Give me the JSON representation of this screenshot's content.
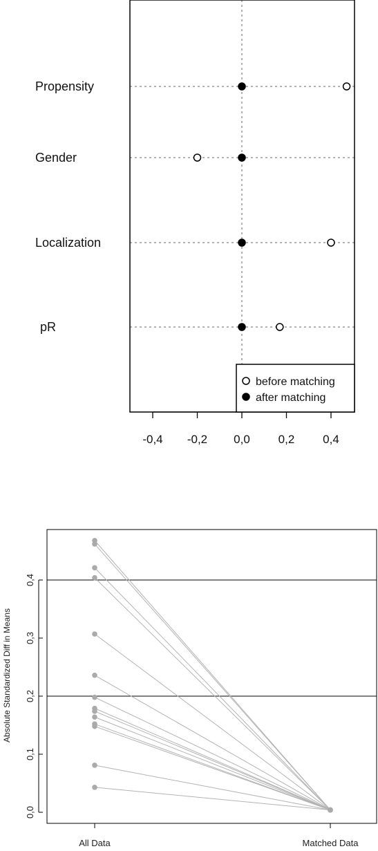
{
  "chart_data": [
    {
      "type": "scatter",
      "xlim": [
        -0.5,
        0.5
      ],
      "x_ticks": [
        -0.4,
        -0.2,
        0.0,
        0.2,
        0.4
      ],
      "x_tick_labels": [
        "-0,4",
        "-0,2",
        "0,0",
        "0,2",
        "0,4"
      ],
      "grid": "dotted lines at x=0 and at each variable",
      "categories": [
        "Propensity",
        "Gender",
        "Localization",
        "pR"
      ],
      "series": [
        {
          "name": "before matching",
          "marker": "open-circle",
          "values": [
            0.47,
            -0.2,
            0.4,
            0.17
          ]
        },
        {
          "name": "after matching",
          "marker": "filled-circle",
          "values": [
            0.0,
            0.0,
            0.0,
            0.0
          ]
        }
      ],
      "legend": {
        "placement": "bottom-right",
        "entries": [
          "before matching",
          "after matching"
        ]
      }
    },
    {
      "type": "line",
      "ylabel": "Absolute Standardized Diff in Means",
      "categories": [
        "All Data",
        "Matched Data"
      ],
      "ylim": [
        -0.01,
        0.49
      ],
      "y_ticks": [
        0.0,
        0.1,
        0.2,
        0.3,
        0.4
      ],
      "y_tick_labels": [
        "0,0",
        "0,1",
        "0,2",
        "0,3",
        "0,4"
      ],
      "reference_lines": [
        0.2,
        0.4
      ],
      "point_color": "#aaaaaa",
      "line_color": "#b3b3b3",
      "series": [
        {
          "values": [
            0.468,
            0.004
          ]
        },
        {
          "values": [
            0.462,
            0.004
          ]
        },
        {
          "values": [
            0.421,
            0.004
          ]
        },
        {
          "values": [
            0.404,
            0.004
          ]
        },
        {
          "values": [
            0.307,
            0.004
          ]
        },
        {
          "values": [
            0.236,
            0.004
          ]
        },
        {
          "values": [
            0.198,
            0.004
          ]
        },
        {
          "values": [
            0.179,
            0.004
          ]
        },
        {
          "values": [
            0.174,
            0.004
          ]
        },
        {
          "values": [
            0.164,
            0.004
          ]
        },
        {
          "values": [
            0.152,
            0.004
          ]
        },
        {
          "values": [
            0.148,
            0.004
          ]
        },
        {
          "values": [
            0.081,
            0.004
          ]
        },
        {
          "values": [
            0.043,
            0.004
          ]
        }
      ]
    }
  ]
}
